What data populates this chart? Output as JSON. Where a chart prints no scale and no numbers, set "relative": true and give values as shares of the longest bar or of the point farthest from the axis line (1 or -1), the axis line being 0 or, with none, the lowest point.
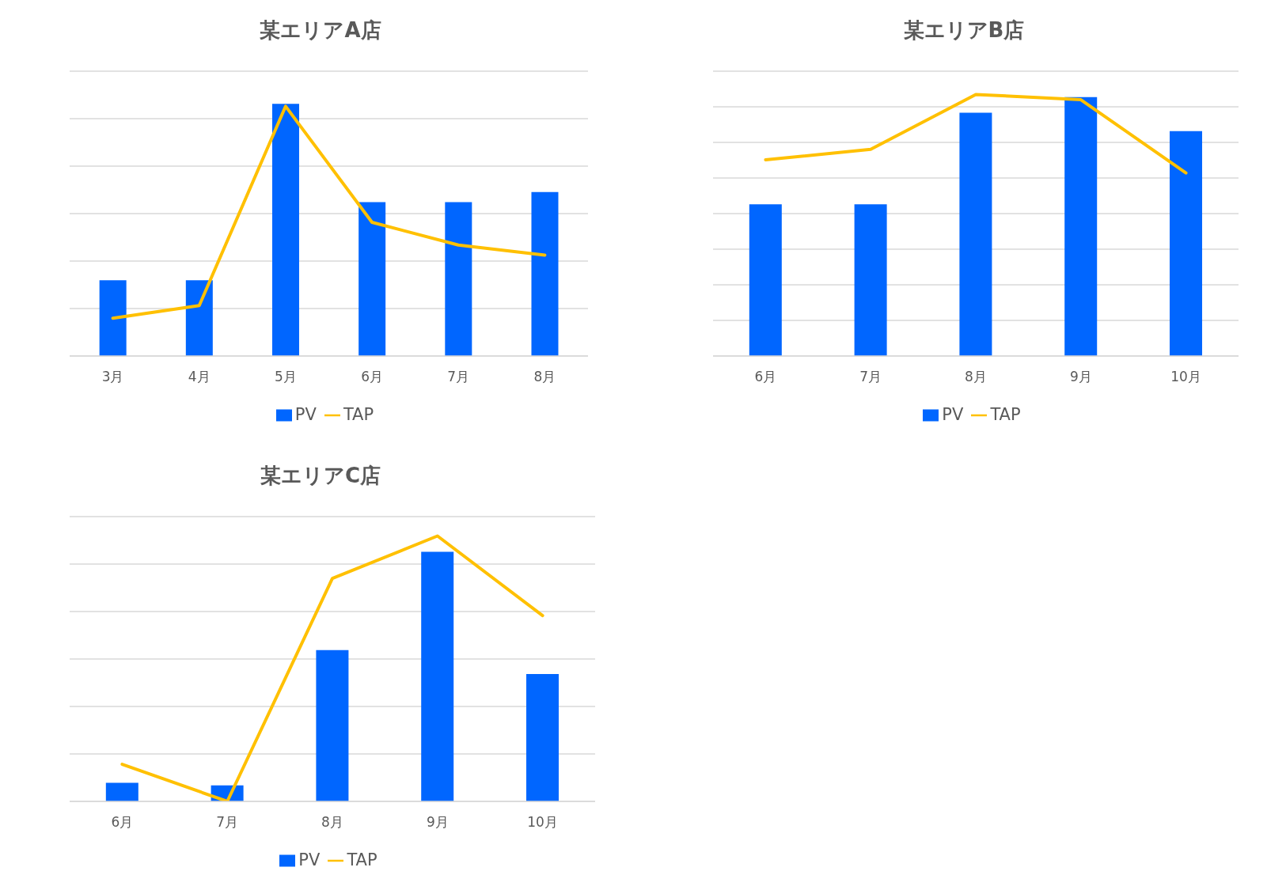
{
  "chart_data": [
    {
      "type": "bar",
      "title": "某エリアA店",
      "categories": [
        "3月",
        "4月",
        "5月",
        "6月",
        "7月",
        "8月"
      ],
      "relative": true,
      "series": [
        {
          "name": "PV",
          "color": "#0066ff",
          "values": [
            0.3,
            0.3,
            1,
            0.61,
            0.61,
            0.65
          ]
        },
        {
          "name": "TAP",
          "type": "line",
          "color": "#ffc000",
          "values": [
            0.15,
            0.2,
            0.99,
            0.53,
            0.44,
            0.4
          ]
        }
      ],
      "grid": "y",
      "legend": "bottom",
      "marker": "none",
      "line_style": "solid"
    },
    {
      "type": "bar",
      "title": "某エリアB店",
      "categories": [
        "6月",
        "7月",
        "8月",
        "9月",
        "10月"
      ],
      "relative": true,
      "series": [
        {
          "name": "PV",
          "color": "#0066ff",
          "values": [
            0.58,
            0.58,
            0.93,
            0.99,
            0.86
          ]
        },
        {
          "name": "TAP",
          "type": "line",
          "color": "#ffc000",
          "values": [
            0.75,
            0.79,
            1,
            0.98,
            0.7
          ]
        }
      ],
      "grid": "y",
      "legend": "bottom",
      "marker": "none",
      "line_style": "solid"
    },
    {
      "type": "bar",
      "title": "某エリアC店",
      "categories": [
        "6月",
        "7月",
        "8月",
        "9月",
        "10月"
      ],
      "relative": true,
      "series": [
        {
          "name": "PV",
          "color": "#0066ff",
          "values": [
            0.07,
            0.06,
            0.57,
            0.94,
            0.48
          ]
        },
        {
          "name": "TAP",
          "type": "line",
          "color": "#ffc000",
          "values": [
            0.14,
            0,
            0.84,
            1,
            0.7
          ]
        }
      ],
      "grid": "y",
      "legend": "bottom",
      "marker": "none",
      "line_style": "solid"
    }
  ]
}
